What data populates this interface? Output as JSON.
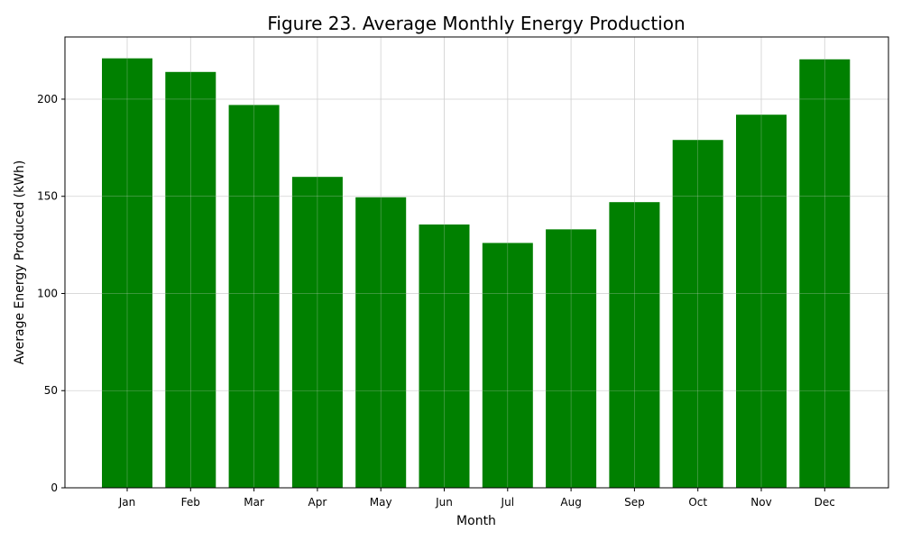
{
  "chart_data": {
    "type": "bar",
    "title": "Figure 23. Average Monthly Energy Production",
    "xlabel": "Month",
    "ylabel": "Average Energy Produced (kWh)",
    "categories": [
      "Jan",
      "Feb",
      "Mar",
      "Apr",
      "May",
      "Jun",
      "Jul",
      "Aug",
      "Sep",
      "Oct",
      "Nov",
      "Dec"
    ],
    "values": [
      221,
      214,
      197,
      160,
      149.5,
      135.5,
      126,
      133,
      147,
      179,
      192,
      220.5
    ],
    "ylim": [
      0,
      232
    ],
    "yticks": [
      0,
      50,
      100,
      150,
      200
    ],
    "grid": true,
    "bar_color": "#008000",
    "grid_color": "#d3d3d3",
    "legend": "none"
  }
}
